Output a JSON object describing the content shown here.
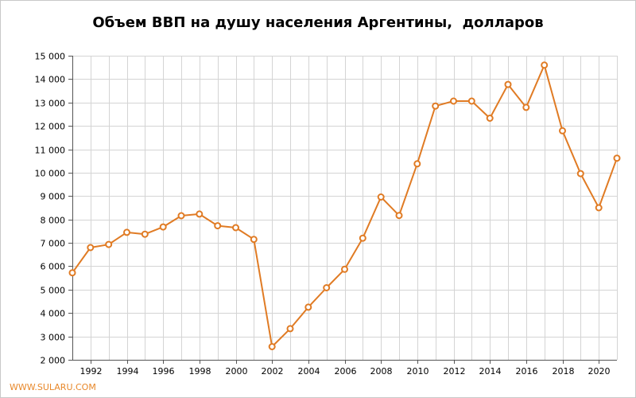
{
  "chart_data": {
    "type": "line",
    "title": "Объем ВВП на душу населения Аргентины,  долларов",
    "xlabel": "",
    "ylabel": "",
    "xlim": [
      1991,
      2021
    ],
    "ylim": [
      2000,
      15000
    ],
    "y_ticks": [
      2000,
      3000,
      4000,
      5000,
      6000,
      7000,
      8000,
      9000,
      10000,
      11000,
      12000,
      13000,
      14000,
      15000
    ],
    "y_tick_labels": [
      "2 000",
      "3 000",
      "4 000",
      "5 000",
      "6 000",
      "7 000",
      "8 000",
      "9 000",
      "10 000",
      "11 000",
      "12 000",
      "13 000",
      "14 000",
      "15 000"
    ],
    "x_ticks": [
      1992,
      1994,
      1996,
      1998,
      2000,
      2002,
      2004,
      2006,
      2008,
      2010,
      2012,
      2014,
      2016,
      2018,
      2020
    ],
    "x_tick_labels": [
      "1992",
      "1994",
      "1996",
      "1998",
      "2000",
      "2002",
      "2004",
      "2006",
      "2008",
      "2010",
      "2012",
      "2014",
      "2016",
      "2018",
      "2020"
    ],
    "grid": true,
    "color": "#e07b24",
    "series": [
      {
        "name": "",
        "x": [
          1991,
          1992,
          1993,
          1994,
          1995,
          1996,
          1997,
          1998,
          1999,
          2000,
          2001,
          2002,
          2003,
          2004,
          2005,
          2006,
          2007,
          2008,
          2009,
          2010,
          2011,
          2012,
          2013,
          2014,
          2015,
          2016,
          2017,
          2018,
          2019,
          2020,
          2021
        ],
        "y": [
          5720,
          6800,
          6930,
          7450,
          7370,
          7680,
          8160,
          8230,
          7730,
          7650,
          7150,
          2560,
          3330,
          4250,
          5080,
          5870,
          7200,
          8960,
          8170,
          10380,
          12850,
          13060,
          13060,
          12330,
          13770,
          12790,
          14600,
          11790,
          9960,
          8500,
          10620
        ]
      }
    ]
  },
  "watermark": "WWW.SULARU.COM"
}
